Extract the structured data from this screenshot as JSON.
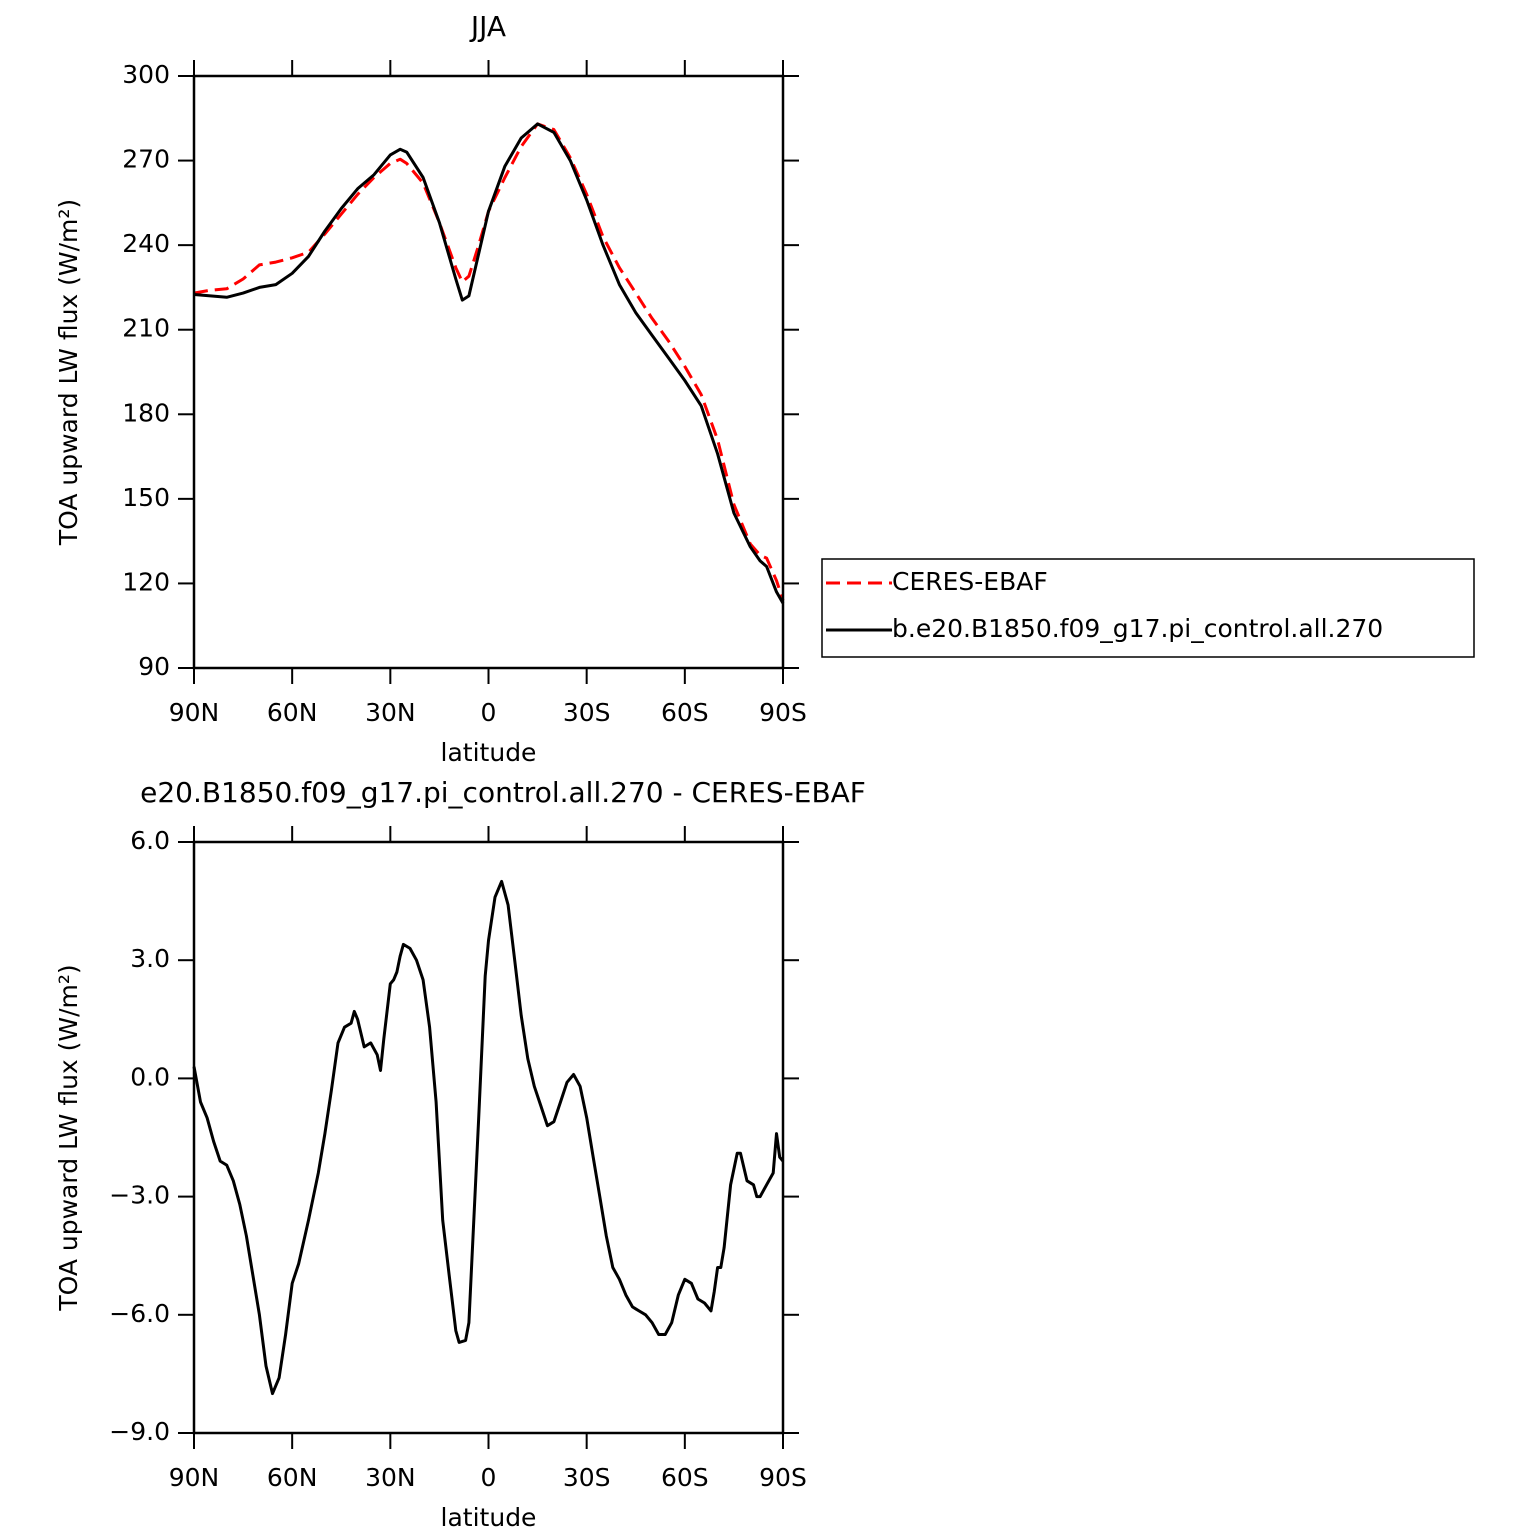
{
  "chart_data": [
    {
      "type": "line",
      "title": "JJA",
      "xlabel": "latitude",
      "ylabel": "TOA upward LW flux (W/m²)",
      "x": [
        90,
        85,
        80,
        75,
        70,
        65,
        60,
        55,
        50,
        45,
        40,
        35,
        30,
        27,
        25,
        20,
        15,
        10,
        8,
        6,
        3,
        0,
        -5,
        -10,
        -15,
        -20,
        -25,
        -30,
        -35,
        -40,
        -45,
        -50,
        -55,
        -60,
        -65,
        -70,
        -75,
        -80,
        -83,
        -85,
        -88,
        -90
      ],
      "series": [
        {
          "name": "CERES-EBAF",
          "color": "#ff0000",
          "dashed": true,
          "values": [
            223,
            224,
            224.5,
            228,
            233,
            234,
            235.5,
            237.5,
            244,
            251,
            258,
            264,
            269,
            270.5,
            269,
            262,
            248,
            232,
            227,
            229,
            240,
            252,
            264,
            275,
            283,
            281,
            271,
            258,
            243,
            232,
            223,
            214,
            206,
            197,
            187,
            171,
            148,
            134,
            130,
            129,
            121,
            114
          ]
        },
        {
          "name": "b.e20.B1850.f09_g17.pi_control.all.270",
          "color": "#000000",
          "dashed": false,
          "values": [
            222.5,
            222,
            221.5,
            223,
            225,
            226,
            230,
            236,
            245,
            253,
            260,
            265,
            272,
            274,
            273,
            264,
            248,
            228,
            220.5,
            222,
            237,
            252,
            268,
            278,
            283,
            280,
            270,
            256,
            240,
            226,
            216,
            208,
            200,
            192,
            183,
            166,
            145,
            133,
            128,
            126,
            117,
            113
          ]
        }
      ],
      "xlim": [
        90,
        -90
      ],
      "xticks": [
        {
          "value": 90,
          "label": "90N"
        },
        {
          "value": 60,
          "label": "60N"
        },
        {
          "value": 30,
          "label": "30N"
        },
        0,
        {
          "value": -30,
          "label": "30S"
        },
        {
          "value": -60,
          "label": "60S"
        },
        {
          "value": -90,
          "label": "90S"
        }
      ],
      "ylim": [
        90,
        300
      ],
      "yticks": [
        90,
        120,
        150,
        180,
        210,
        240,
        270,
        300
      ],
      "legend": "outside-right"
    },
    {
      "type": "line",
      "title": "e20.B1850.f09_g17.pi_control.all.270 - CERES-EBAF",
      "xlabel": "latitude",
      "ylabel": "TOA upward LW flux (W/m²)",
      "x": [
        90,
        88,
        86,
        84,
        82,
        80,
        78,
        76,
        74,
        72,
        70,
        68,
        66,
        64,
        62,
        60,
        58,
        55,
        52,
        50,
        48,
        46,
        44,
        42,
        41,
        40,
        38,
        36,
        34,
        33,
        32,
        30,
        29,
        28,
        27,
        26,
        24,
        22,
        20,
        18,
        16,
        14,
        12,
        10,
        9,
        7,
        6,
        5,
        3,
        1,
        0,
        -2,
        -4,
        -6,
        -8,
        -10,
        -12,
        -14,
        -16,
        -18,
        -20,
        -22,
        -24,
        -26,
        -28,
        -30,
        -32,
        -34,
        -36,
        -38,
        -40,
        -42,
        -44,
        -46,
        -48,
        -50,
        -52,
        -54,
        -56,
        -58,
        -60,
        -62,
        -64,
        -66,
        -68,
        -69,
        -70,
        -71,
        -72,
        -74,
        -76,
        -77,
        -79,
        -81,
        -82,
        -83,
        -85,
        -87,
        -88,
        -89,
        -90
      ],
      "values": [
        0.3,
        -0.6,
        -1.0,
        -1.6,
        -2.1,
        -2.2,
        -2.6,
        -3.2,
        -4.0,
        -5.0,
        -6.0,
        -7.3,
        -8.0,
        -7.6,
        -6.5,
        -5.2,
        -4.7,
        -3.6,
        -2.4,
        -1.4,
        -0.3,
        0.9,
        1.3,
        1.4,
        1.7,
        1.5,
        0.8,
        0.9,
        0.6,
        0.2,
        1.0,
        2.4,
        2.5,
        2.7,
        3.1,
        3.4,
        3.3,
        3.0,
        2.5,
        1.3,
        -0.6,
        -3.6,
        -5.0,
        -6.4,
        -6.7,
        -6.65,
        -6.2,
        -4.5,
        -1.0,
        2.6,
        3.5,
        4.6,
        5.0,
        4.4,
        3.0,
        1.6,
        0.5,
        -0.2,
        -0.7,
        -1.2,
        -1.1,
        -0.6,
        -0.1,
        0.1,
        -0.2,
        -1.0,
        -2.0,
        -3.0,
        -4.0,
        -4.8,
        -5.1,
        -5.5,
        -5.8,
        -5.9,
        -6.0,
        -6.2,
        -6.5,
        -6.5,
        -6.2,
        -5.5,
        -5.1,
        -5.2,
        -5.6,
        -5.7,
        -5.9,
        -5.4,
        -4.8,
        -4.8,
        -4.3,
        -2.7,
        -1.9,
        -1.9,
        -2.6,
        -2.7,
        -3.0,
        -3.0,
        -2.7,
        -2.4,
        -1.4,
        -2.0,
        -2.1
      ],
      "color": "#000000",
      "xlim": [
        90,
        -90
      ],
      "xticks": [
        {
          "value": 90,
          "label": "90N"
        },
        {
          "value": 60,
          "label": "60N"
        },
        {
          "value": 30,
          "label": "30N"
        },
        0,
        {
          "value": -30,
          "label": "30S"
        },
        {
          "value": -60,
          "label": "60S"
        },
        {
          "value": -90,
          "label": "90S"
        }
      ],
      "ylim": [
        -9,
        6
      ],
      "yticks": [
        {
          "value": -9,
          "label": "−9.0"
        },
        {
          "value": -6,
          "label": "−6.0"
        },
        {
          "value": -3,
          "label": "−3.0"
        },
        {
          "value": 0,
          "label": "0.0"
        },
        {
          "value": 3,
          "label": "3.0"
        },
        {
          "value": 6,
          "label": "6.0"
        }
      ]
    }
  ]
}
